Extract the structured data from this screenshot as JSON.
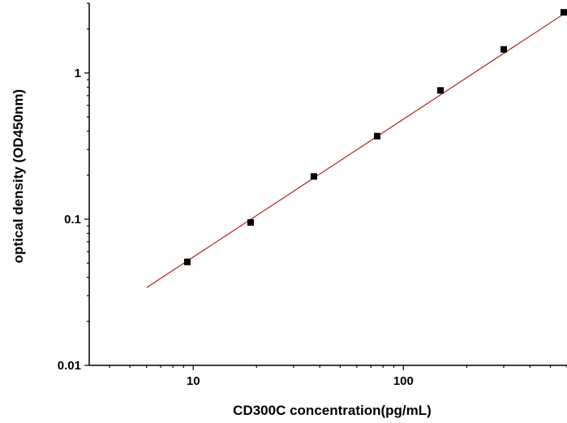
{
  "chart_data": {
    "type": "scatter",
    "title": "",
    "xlabel": "CD300C  concentration(pg/mL)",
    "ylabel": "optical density (OD450nm)",
    "x_scale": "log",
    "y_scale": "log",
    "xlim": [
      3.2,
      600
    ],
    "ylim": [
      0.01,
      3.0
    ],
    "grid": false,
    "legend": "none",
    "x_ticks": [
      {
        "value": 10,
        "label": "10"
      },
      {
        "value": 100,
        "label": "100"
      }
    ],
    "y_ticks": [
      {
        "value": 0.01,
        "label": "0.01"
      },
      {
        "value": 0.1,
        "label": "0.1"
      },
      {
        "value": 1,
        "label": "1"
      }
    ],
    "series": [
      {
        "x": [
          9.375,
          18.75,
          37.5,
          75,
          150,
          300,
          600
        ],
        "y": [
          0.051,
          0.095,
          0.196,
          0.37,
          0.76,
          1.45,
          2.6
        ]
      }
    ],
    "fit_line": {
      "x_start": 6,
      "y_start": 0.034,
      "x_end": 600,
      "y_end": 2.62,
      "color": "#b22222"
    },
    "marker_color": "#000000"
  }
}
